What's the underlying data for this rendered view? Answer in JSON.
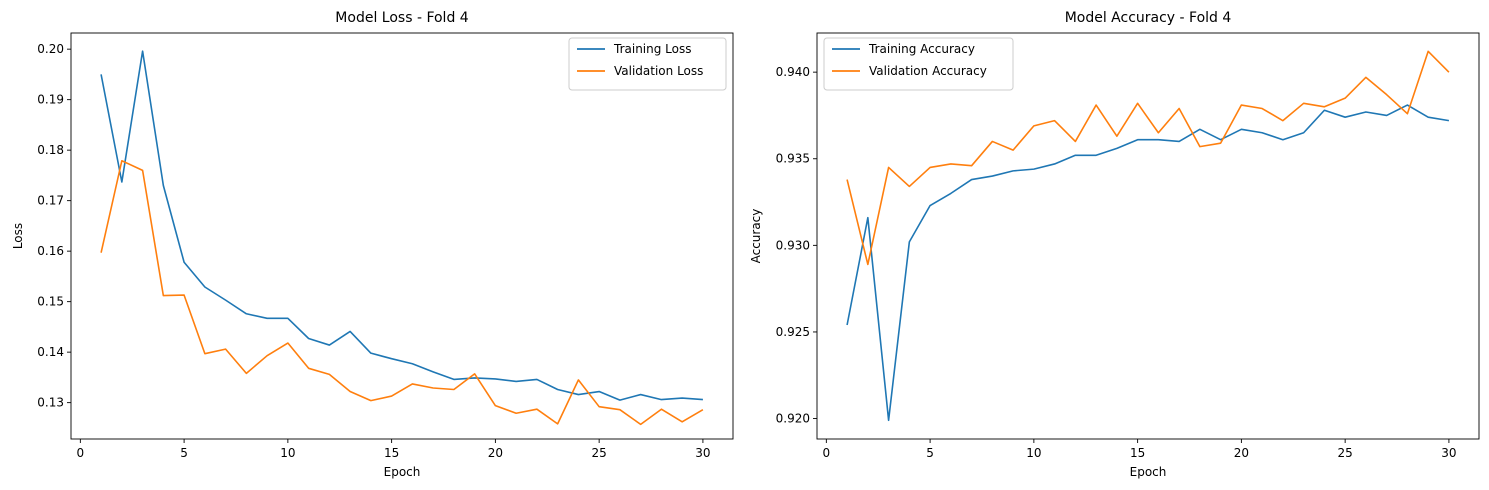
{
  "chart_data": [
    {
      "type": "line",
      "title": "Model Loss - Fold 4",
      "xlabel": "Epoch",
      "ylabel": "Loss",
      "xlim": [
        -0.45,
        31.45
      ],
      "ylim": [
        0.1228,
        0.2032
      ],
      "xticks": [
        0,
        5,
        10,
        15,
        20,
        25,
        30
      ],
      "yticks": [
        0.13,
        0.14,
        0.15,
        0.16,
        0.17,
        0.18,
        0.19,
        0.2
      ],
      "ytick_labels": [
        "0.13",
        "0.14",
        "0.15",
        "0.16",
        "0.17",
        "0.18",
        "0.19",
        "0.20"
      ],
      "grid": false,
      "legend": "top-right",
      "x": [
        1,
        2,
        3,
        4,
        5,
        6,
        7,
        8,
        9,
        10,
        11,
        12,
        13,
        14,
        15,
        16,
        17,
        18,
        19,
        20,
        21,
        22,
        23,
        24,
        25,
        26,
        27,
        28,
        29,
        30
      ],
      "series": [
        {
          "name": "Training Loss",
          "color": "#1f77b4",
          "values": [
            0.195,
            0.1737,
            0.1996,
            0.173,
            0.1578,
            0.1529,
            0.1503,
            0.1476,
            0.1467,
            0.1467,
            0.1427,
            0.1414,
            0.1441,
            0.1398,
            0.1387,
            0.1377,
            0.1361,
            0.1346,
            0.1349,
            0.1347,
            0.1342,
            0.1346,
            0.1326,
            0.1316,
            0.1322,
            0.1305,
            0.1316,
            0.1306,
            0.1309,
            0.1306
          ]
        },
        {
          "name": "Validation Loss",
          "color": "#ff7f0e",
          "values": [
            0.1597,
            0.1779,
            0.176,
            0.1512,
            0.1513,
            0.1397,
            0.1406,
            0.1358,
            0.1393,
            0.1418,
            0.1368,
            0.1356,
            0.1322,
            0.1304,
            0.1313,
            0.1337,
            0.1329,
            0.1326,
            0.1357,
            0.1294,
            0.1279,
            0.1287,
            0.1258,
            0.1345,
            0.1292,
            0.1286,
            0.1257,
            0.1287,
            0.1262,
            0.1286
          ]
        }
      ]
    },
    {
      "type": "line",
      "title": "Model Accuracy - Fold 4",
      "xlabel": "Epoch",
      "ylabel": "Accuracy",
      "xlim": [
        -0.45,
        31.45
      ],
      "ylim": [
        0.91882,
        0.94226
      ],
      "xticks": [
        0,
        5,
        10,
        15,
        20,
        25,
        30
      ],
      "yticks": [
        0.92,
        0.925,
        0.93,
        0.935,
        0.94
      ],
      "ytick_labels": [
        "0.920",
        "0.925",
        "0.930",
        "0.935",
        "0.940"
      ],
      "grid": false,
      "legend": "top-left",
      "x": [
        1,
        2,
        3,
        4,
        5,
        6,
        7,
        8,
        9,
        10,
        11,
        12,
        13,
        14,
        15,
        16,
        17,
        18,
        19,
        20,
        21,
        22,
        23,
        24,
        25,
        26,
        27,
        28,
        29,
        30
      ],
      "series": [
        {
          "name": "Training Accuracy",
          "color": "#1f77b4",
          "values": [
            0.9254,
            0.9316,
            0.9199,
            0.9302,
            0.9323,
            0.933,
            0.9338,
            0.934,
            0.9343,
            0.9344,
            0.9347,
            0.9352,
            0.9352,
            0.9356,
            0.9361,
            0.9361,
            0.936,
            0.9367,
            0.9361,
            0.9367,
            0.9365,
            0.9361,
            0.9365,
            0.9378,
            0.9374,
            0.9377,
            0.9375,
            0.9381,
            0.9374,
            0.9372
          ]
        },
        {
          "name": "Validation Accuracy",
          "color": "#ff7f0e",
          "values": [
            0.9338,
            0.9289,
            0.9345,
            0.9334,
            0.9345,
            0.9347,
            0.9346,
            0.936,
            0.9355,
            0.9369,
            0.9372,
            0.936,
            0.9381,
            0.9363,
            0.9382,
            0.9365,
            0.9379,
            0.9357,
            0.9359,
            0.9381,
            0.9379,
            0.9372,
            0.9382,
            0.938,
            0.9385,
            0.9397,
            0.9387,
            0.9376,
            0.9412,
            0.94
          ]
        }
      ]
    }
  ]
}
